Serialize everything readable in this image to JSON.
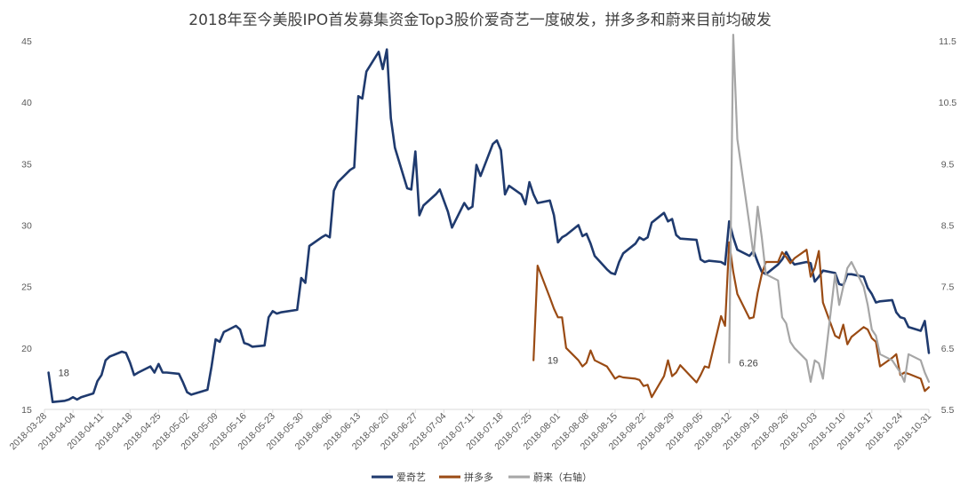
{
  "chart_data": {
    "type": "line",
    "title": "2018年至今美股IPO首发募集资金Top3股价爱奇艺一度破发，拼多多和蔚来目前均破发",
    "x_tick_labels": [
      "2018-03-28",
      "2018-04-04",
      "2018-04-11",
      "2018-04-18",
      "2018-04-25",
      "2018-05-02",
      "2018-05-09",
      "2018-05-16",
      "2018-05-23",
      "2018-05-30",
      "2018-06-06",
      "2018-06-13",
      "2018-06-20",
      "2018-06-27",
      "2018-07-04",
      "2018-07-11",
      "2018-07-18",
      "2018-07-25",
      "2018-08-01",
      "2018-08-08",
      "2018-08-15",
      "2018-08-22",
      "2018-08-29",
      "2018-09-05",
      "2018-09-12",
      "2018-09-19",
      "2018-09-26",
      "2018-10-03",
      "2018-10-10",
      "2018-10-17",
      "2018-10-24",
      "2018-10-31"
    ],
    "y_left": {
      "ticks": [
        15,
        20,
        25,
        30,
        35,
        40,
        45
      ],
      "range": [
        15,
        45
      ]
    },
    "y_right": {
      "ticks": [
        "5.5",
        "6.5",
        "7.5",
        "8.5",
        "9.5",
        "10.5",
        "11.5"
      ],
      "range": [
        5.5,
        11.5
      ]
    },
    "annotations": [
      {
        "text": "18",
        "x": "2018-03-29",
        "y": 18,
        "axis": "left"
      },
      {
        "text": "19",
        "x": "2018-07-27",
        "y": 19,
        "axis": "left"
      },
      {
        "text": "6.26",
        "x": "2018-09-12",
        "y": 6.26,
        "axis": "right"
      }
    ],
    "series": [
      {
        "name": "爱奇艺",
        "color": "#1f3a6e",
        "axis": "left",
        "x": [
          "2018-03-29",
          "2018-03-30",
          "2018-04-02",
          "2018-04-03",
          "2018-04-04",
          "2018-04-05",
          "2018-04-06",
          "2018-04-09",
          "2018-04-10",
          "2018-04-11",
          "2018-04-12",
          "2018-04-13",
          "2018-04-16",
          "2018-04-17",
          "2018-04-18",
          "2018-04-19",
          "2018-04-20",
          "2018-04-23",
          "2018-04-24",
          "2018-04-25",
          "2018-04-26",
          "2018-04-27",
          "2018-04-30",
          "2018-05-01",
          "2018-05-02",
          "2018-05-03",
          "2018-05-04",
          "2018-05-07",
          "2018-05-08",
          "2018-05-09",
          "2018-05-10",
          "2018-05-11",
          "2018-05-14",
          "2018-05-15",
          "2018-05-16",
          "2018-05-17",
          "2018-05-18",
          "2018-05-21",
          "2018-05-22",
          "2018-05-23",
          "2018-05-24",
          "2018-05-25",
          "2018-05-29",
          "2018-05-30",
          "2018-05-31",
          "2018-06-01",
          "2018-06-04",
          "2018-06-05",
          "2018-06-06",
          "2018-06-07",
          "2018-06-08",
          "2018-06-11",
          "2018-06-12",
          "2018-06-13",
          "2018-06-14",
          "2018-06-15",
          "2018-06-18",
          "2018-06-19",
          "2018-06-20",
          "2018-06-21",
          "2018-06-22",
          "2018-06-25",
          "2018-06-26",
          "2018-06-27",
          "2018-06-28",
          "2018-06-29",
          "2018-07-02",
          "2018-07-03",
          "2018-07-05",
          "2018-07-06",
          "2018-07-09",
          "2018-07-10",
          "2018-07-11",
          "2018-07-12",
          "2018-07-13",
          "2018-07-16",
          "2018-07-17",
          "2018-07-18",
          "2018-07-19",
          "2018-07-20",
          "2018-07-23",
          "2018-07-24",
          "2018-07-25",
          "2018-07-26",
          "2018-07-27",
          "2018-07-30",
          "2018-07-31",
          "2018-08-01",
          "2018-08-02",
          "2018-08-03",
          "2018-08-06",
          "2018-08-07",
          "2018-08-08",
          "2018-08-09",
          "2018-08-10",
          "2018-08-13",
          "2018-08-14",
          "2018-08-15",
          "2018-08-16",
          "2018-08-17",
          "2018-08-20",
          "2018-08-21",
          "2018-08-22",
          "2018-08-23",
          "2018-08-24",
          "2018-08-27",
          "2018-08-28",
          "2018-08-29",
          "2018-08-30",
          "2018-08-31",
          "2018-09-04",
          "2018-09-05",
          "2018-09-06",
          "2018-09-07",
          "2018-09-10",
          "2018-09-11",
          "2018-09-12",
          "2018-09-13",
          "2018-09-14",
          "2018-09-17",
          "2018-09-18",
          "2018-09-19",
          "2018-09-20",
          "2018-09-21",
          "2018-09-24",
          "2018-09-25",
          "2018-09-26",
          "2018-09-27",
          "2018-09-28",
          "2018-10-01",
          "2018-10-02",
          "2018-10-03",
          "2018-10-04",
          "2018-10-05",
          "2018-10-08",
          "2018-10-09",
          "2018-10-10",
          "2018-10-11",
          "2018-10-12",
          "2018-10-15",
          "2018-10-16",
          "2018-10-17",
          "2018-10-18",
          "2018-10-19",
          "2018-10-22",
          "2018-10-23",
          "2018-10-24",
          "2018-10-25",
          "2018-10-26",
          "2018-10-29",
          "2018-10-30",
          "2018-10-31"
        ],
        "values": [
          18.0,
          15.6,
          15.7,
          15.8,
          16.0,
          15.8,
          16.0,
          16.3,
          17.3,
          17.8,
          19.0,
          19.3,
          19.7,
          19.6,
          18.8,
          17.8,
          18.0,
          18.5,
          18.0,
          18.7,
          18.0,
          18.0,
          17.9,
          17.2,
          16.4,
          16.2,
          16.3,
          16.6,
          18.5,
          20.7,
          20.5,
          21.3,
          21.8,
          21.5,
          20.4,
          20.3,
          20.1,
          20.2,
          22.5,
          23.0,
          22.8,
          22.9,
          23.1,
          25.7,
          25.3,
          28.3,
          29.0,
          29.2,
          29.0,
          32.8,
          33.5,
          34.5,
          34.7,
          40.5,
          40.3,
          42.5,
          44.1,
          42.7,
          44.3,
          38.7,
          36.3,
          33.0,
          32.9,
          36.0,
          30.8,
          31.6,
          32.5,
          32.9,
          31.1,
          29.8,
          31.8,
          31.3,
          31.5,
          34.9,
          34.0,
          36.6,
          36.9,
          36.1,
          32.5,
          33.2,
          32.5,
          31.7,
          33.5,
          32.5,
          31.8,
          32.0,
          30.8,
          28.6,
          29.0,
          29.2,
          30.0,
          29.1,
          29.3,
          28.5,
          27.5,
          26.4,
          26.1,
          26.0,
          27.0,
          27.7,
          28.5,
          29.0,
          28.8,
          29.0,
          30.2,
          31.0,
          30.3,
          30.5,
          29.2,
          28.9,
          28.8,
          27.2,
          27.0,
          27.1,
          27.0,
          26.8,
          30.3,
          29.0,
          28.0,
          27.5,
          27.9,
          27.0,
          26.2,
          26.0,
          26.8,
          27.2,
          27.8,
          27.2,
          26.8,
          27.0,
          26.9,
          25.4,
          25.8,
          26.3,
          26.1,
          25.2,
          25.1,
          26.0,
          26.0,
          25.8,
          24.9,
          24.4,
          23.7,
          23.8,
          23.9,
          22.9,
          22.5,
          22.4,
          21.7,
          21.4,
          22.2,
          19.6
        ]
      },
      {
        "name": "拼多多",
        "color": "#9a4b14",
        "axis": "left",
        "x": [
          "2018-07-26",
          "2018-07-27",
          "2018-07-30",
          "2018-07-31",
          "2018-08-01",
          "2018-08-02",
          "2018-08-03",
          "2018-08-06",
          "2018-08-07",
          "2018-08-08",
          "2018-08-09",
          "2018-08-10",
          "2018-08-13",
          "2018-08-14",
          "2018-08-15",
          "2018-08-16",
          "2018-08-17",
          "2018-08-20",
          "2018-08-21",
          "2018-08-22",
          "2018-08-23",
          "2018-08-24",
          "2018-08-27",
          "2018-08-28",
          "2018-08-29",
          "2018-08-30",
          "2018-08-31",
          "2018-09-04",
          "2018-09-05",
          "2018-09-06",
          "2018-09-07",
          "2018-09-10",
          "2018-09-11",
          "2018-09-12",
          "2018-09-13",
          "2018-09-14",
          "2018-09-17",
          "2018-09-18",
          "2018-09-19",
          "2018-09-20",
          "2018-09-21",
          "2018-09-24",
          "2018-09-25",
          "2018-09-26",
          "2018-09-27",
          "2018-09-28",
          "2018-10-01",
          "2018-10-02",
          "2018-10-03",
          "2018-10-04",
          "2018-10-05",
          "2018-10-08",
          "2018-10-09",
          "2018-10-10",
          "2018-10-11",
          "2018-10-12",
          "2018-10-15",
          "2018-10-16",
          "2018-10-17",
          "2018-10-18",
          "2018-10-19",
          "2018-10-22",
          "2018-10-23",
          "2018-10-24",
          "2018-10-25",
          "2018-10-26",
          "2018-10-29",
          "2018-10-30",
          "2018-10-31"
        ],
        "values": [
          19.0,
          26.7,
          24.1,
          23.2,
          22.5,
          22.5,
          20.0,
          19.0,
          18.5,
          18.8,
          19.8,
          19.0,
          18.5,
          18.0,
          17.5,
          17.7,
          17.6,
          17.5,
          17.4,
          16.9,
          17.0,
          16.0,
          17.7,
          19.0,
          17.7,
          18.0,
          18.6,
          17.2,
          17.8,
          18.5,
          18.4,
          22.6,
          21.8,
          28.6,
          26.2,
          24.4,
          22.4,
          22.5,
          24.5,
          26.0,
          27.0,
          27.0,
          27.8,
          27.4,
          26.9,
          27.3,
          28.0,
          25.8,
          26.5,
          27.9,
          23.7,
          21.0,
          20.8,
          21.9,
          20.3,
          20.9,
          21.7,
          21.5,
          20.8,
          20.5,
          18.5,
          19.2,
          19.5,
          17.8,
          18.0,
          17.9,
          17.5,
          16.5,
          16.8
        ]
      },
      {
        "name": "蔚来（右轴）",
        "color": "#a6a6a6",
        "axis": "right",
        "x": [
          "2018-09-12",
          "2018-09-13",
          "2018-09-14",
          "2018-09-17",
          "2018-09-18",
          "2018-09-19",
          "2018-09-20",
          "2018-09-21",
          "2018-09-24",
          "2018-09-25",
          "2018-09-26",
          "2018-09-27",
          "2018-09-28",
          "2018-10-01",
          "2018-10-02",
          "2018-10-03",
          "2018-10-04",
          "2018-10-05",
          "2018-10-08",
          "2018-10-09",
          "2018-10-10",
          "2018-10-11",
          "2018-10-12",
          "2018-10-15",
          "2018-10-16",
          "2018-10-17",
          "2018-10-18",
          "2018-10-19",
          "2018-10-22",
          "2018-10-23",
          "2018-10-24",
          "2018-10-25",
          "2018-10-26",
          "2018-10-29",
          "2018-10-30",
          "2018-10-31"
        ],
        "values": [
          6.26,
          11.6,
          9.9,
          8.5,
          8.0,
          8.8,
          8.3,
          7.7,
          7.6,
          7.0,
          6.9,
          6.6,
          6.5,
          6.3,
          5.95,
          6.3,
          6.25,
          6.0,
          7.7,
          7.2,
          7.5,
          7.8,
          7.9,
          7.5,
          7.2,
          6.8,
          6.7,
          6.4,
          6.3,
          6.2,
          6.1,
          5.95,
          6.4,
          6.3,
          6.1,
          5.95
        ]
      }
    ]
  },
  "legend": {
    "items": [
      "爱奇艺",
      "拼多多",
      "蔚来（右轴）"
    ]
  }
}
